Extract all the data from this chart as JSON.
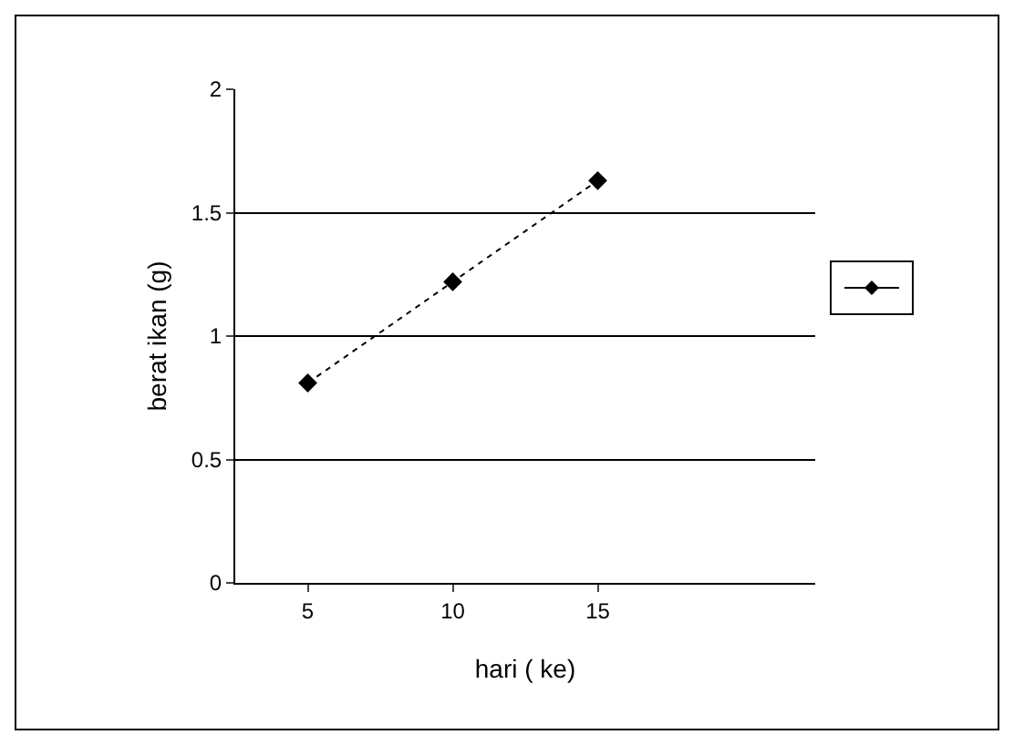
{
  "chart_data": {
    "type": "line",
    "xlabel": "hari ( ke)",
    "ylabel": "berat ikan (g)",
    "categories": [
      "5",
      "10",
      "15",
      null
    ],
    "series": [
      {
        "color": "#000000",
        "values": [
          0.81,
          1.22,
          1.63,
          null
        ]
      }
    ],
    "ylim": [
      0,
      2
    ],
    "yticks": [
      0,
      0.5,
      1,
      1.5,
      2
    ],
    "grid": "y",
    "marker": "diamond",
    "line_style": "dotted"
  }
}
